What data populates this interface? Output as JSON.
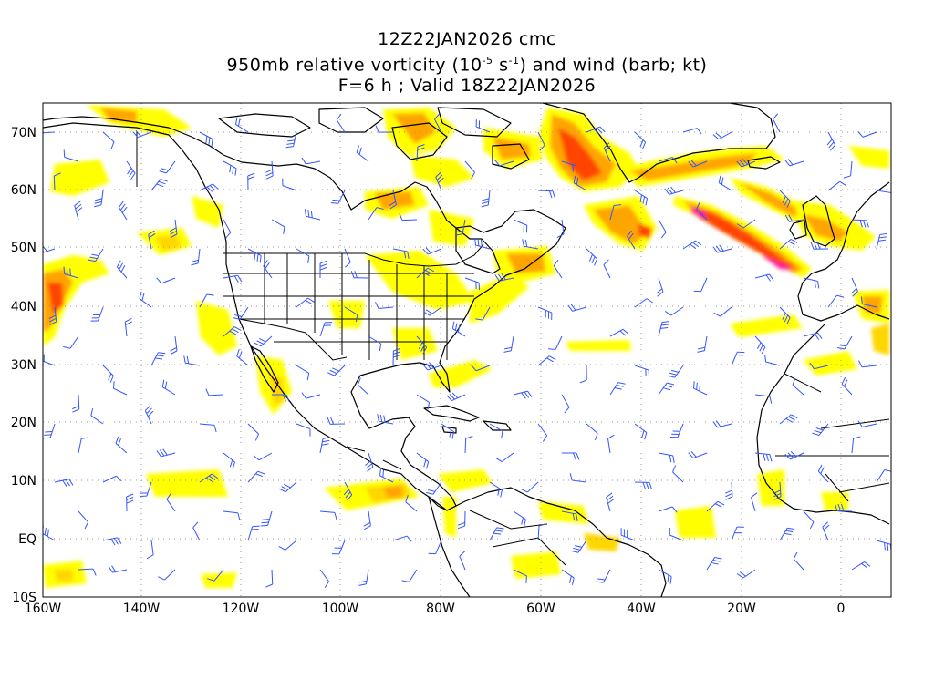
{
  "title": {
    "line1": "12Z22JAN2026 cmc",
    "line2_pre": "950mb relative vorticity (10",
    "line2_exp1": "-5",
    "line2_mid": " s",
    "line2_exp2": "-1",
    "line2_post": ") and wind (barb; kt)",
    "line3": "F=6 h ; Valid 18Z22JAN2026"
  },
  "axes": {
    "lon_labels": [
      "160W",
      "140W",
      "120W",
      "100W",
      "80W",
      "60W",
      "40W",
      "20W",
      "0"
    ],
    "lat_labels": [
      "70N",
      "60N",
      "50N",
      "40N",
      "30N",
      "20N",
      "10N",
      "EQ",
      "10S"
    ]
  },
  "colors": {
    "shade_light": "#ffff00",
    "shade_yellow_orange": "#ffd700",
    "shade_orange": "#ffa500",
    "shade_red": "#ff4500",
    "shade_magenta": "#ff1493",
    "barb": "#3355ff",
    "coast": "#000000",
    "grid": "#999999"
  }
}
